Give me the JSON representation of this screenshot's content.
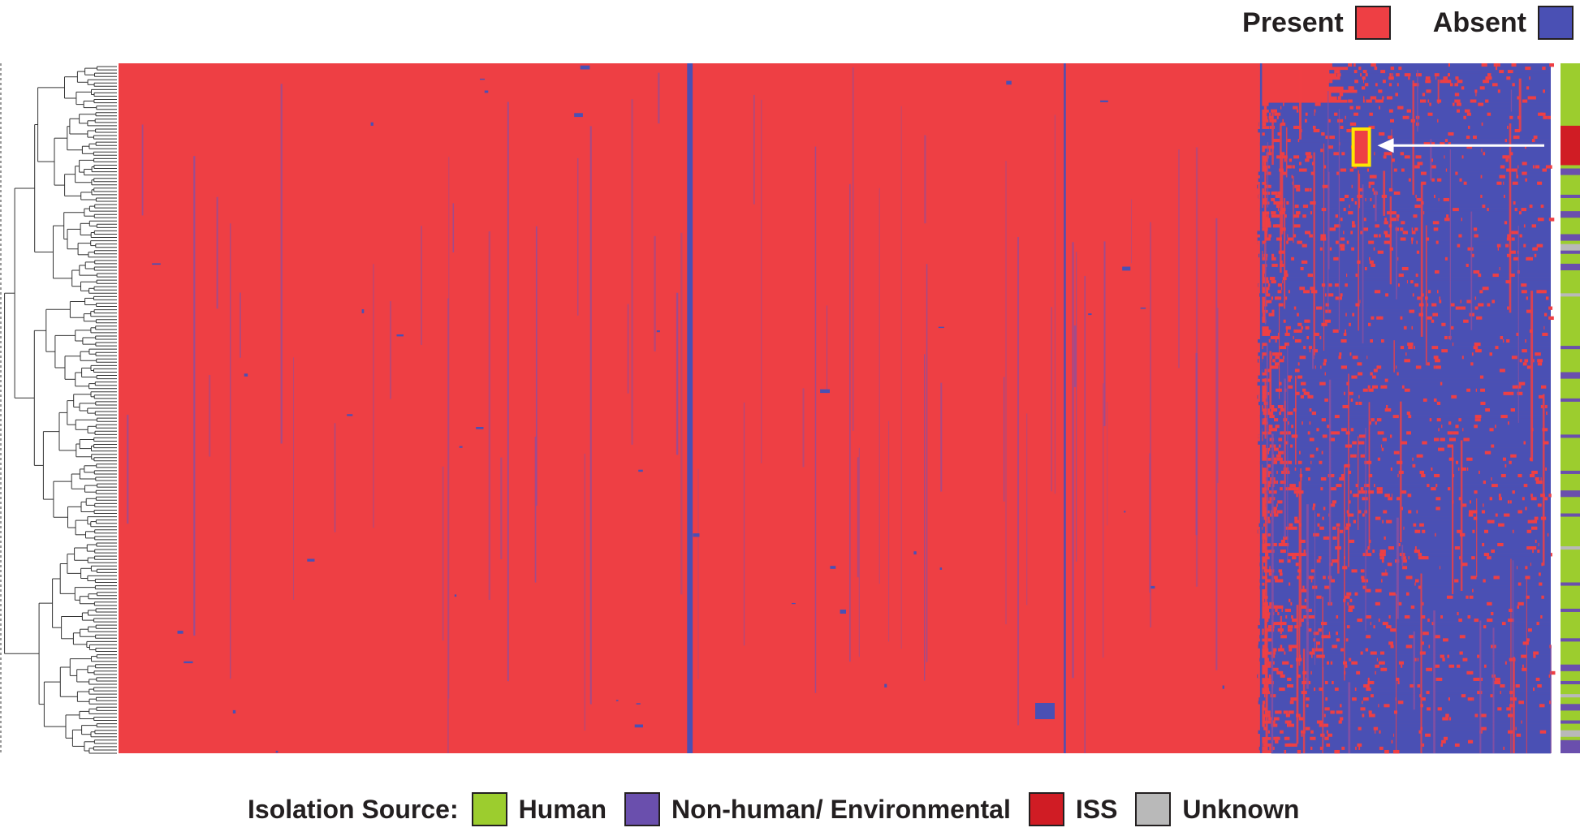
{
  "colors": {
    "present": "#ee3f44",
    "absent": "#4a50b4",
    "mixed": "#8a4fa0",
    "tree": "#333333",
    "highlight": "#ffe600",
    "arrow": "#ffffff",
    "human": "#9ccd2e",
    "non_human_environmental": "#6a4fad",
    "iss": "#d01c24",
    "unknown": "#b9b9b9"
  },
  "top_legend": {
    "present_label": "Present",
    "absent_label": "Absent"
  },
  "bottom_legend": {
    "title": "Isolation Source:",
    "human_label": "Human",
    "non_human_label": "Non-human/ Environmental",
    "iss_label": "ISS",
    "unknown_label": "Unknown"
  },
  "chart_data": {
    "type": "heatmap",
    "title": "",
    "xlabel": "",
    "ylabel": "",
    "value_categories": [
      "Present",
      "Absent"
    ],
    "row_annotation_categories": [
      "Human",
      "Non-human/ Environmental",
      "ISS",
      "Unknown"
    ],
    "num_rows": 210,
    "row_annotation": {
      "default": "Human",
      "segments": [
        {
          "start_row": 0,
          "end_row": 4,
          "category": "Human"
        },
        {
          "start_row": 19,
          "end_row": 30,
          "category": "ISS"
        },
        {
          "start_row": 32,
          "end_row": 33,
          "category": "Non-human/ Environmental"
        },
        {
          "start_row": 40,
          "end_row": 40,
          "category": "Non-human/ Environmental"
        },
        {
          "start_row": 45,
          "end_row": 46,
          "category": "Non-human/ Environmental"
        },
        {
          "start_row": 52,
          "end_row": 53,
          "category": "Non-human/ Environmental"
        },
        {
          "start_row": 55,
          "end_row": 56,
          "category": "Unknown"
        },
        {
          "start_row": 57,
          "end_row": 57,
          "category": "Non-human/ Environmental"
        },
        {
          "start_row": 61,
          "end_row": 62,
          "category": "Non-human/ Environmental"
        },
        {
          "start_row": 70,
          "end_row": 70,
          "category": "Unknown"
        },
        {
          "start_row": 86,
          "end_row": 86,
          "category": "Non-human/ Environmental"
        },
        {
          "start_row": 94,
          "end_row": 95,
          "category": "Non-human/ Environmental"
        },
        {
          "start_row": 102,
          "end_row": 102,
          "category": "Non-human/ Environmental"
        },
        {
          "start_row": 113,
          "end_row": 113,
          "category": "Non-human/ Environmental"
        },
        {
          "start_row": 124,
          "end_row": 124,
          "category": "Non-human/ Environmental"
        },
        {
          "start_row": 130,
          "end_row": 131,
          "category": "Non-human/ Environmental"
        },
        {
          "start_row": 137,
          "end_row": 137,
          "category": "Non-human/ Environmental"
        },
        {
          "start_row": 147,
          "end_row": 147,
          "category": "Unknown"
        },
        {
          "start_row": 158,
          "end_row": 158,
          "category": "Non-human/ Environmental"
        },
        {
          "start_row": 166,
          "end_row": 166,
          "category": "Non-human/ Environmental"
        },
        {
          "start_row": 175,
          "end_row": 175,
          "category": "Non-human/ Environmental"
        },
        {
          "start_row": 183,
          "end_row": 184,
          "category": "Non-human/ Environmental"
        },
        {
          "start_row": 188,
          "end_row": 188,
          "category": "Non-human/ Environmental"
        },
        {
          "start_row": 192,
          "end_row": 192,
          "category": "Unknown"
        },
        {
          "start_row": 195,
          "end_row": 196,
          "category": "Non-human/ Environmental"
        },
        {
          "start_row": 200,
          "end_row": 200,
          "category": "Non-human/ Environmental"
        },
        {
          "start_row": 203,
          "end_row": 204,
          "category": "Unknown"
        },
        {
          "start_row": 206,
          "end_row": 209,
          "category": "Non-human/ Environmental"
        }
      ]
    },
    "core_present_fraction": 0.8,
    "absent_columns_fraction_in_core": [
      0.398,
      0.397,
      0.66,
      0.797
    ],
    "highlight_rows": [
      20,
      30
    ],
    "arrow_present": true,
    "dendrogram": true
  }
}
